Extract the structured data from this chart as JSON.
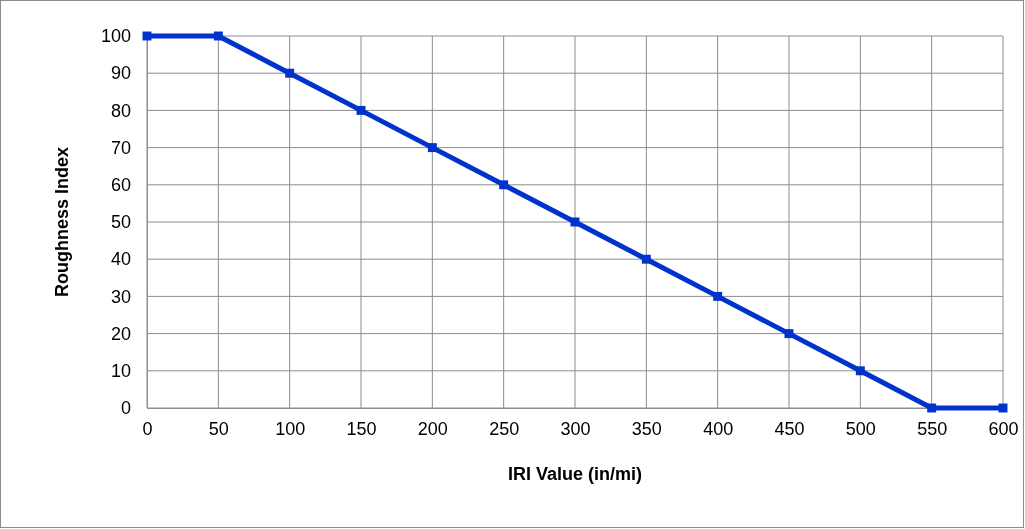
{
  "chart_data": {
    "type": "line",
    "xlabel": "IRI Value (in/mi)",
    "ylabel": "Roughness Index",
    "x": [
      0,
      50,
      100,
      150,
      200,
      250,
      300,
      350,
      400,
      450,
      500,
      550,
      600
    ],
    "series": [
      {
        "color": "#0033cc",
        "values": [
          100,
          100,
          90,
          80,
          70,
          60,
          50,
          40,
          30,
          20,
          10,
          0,
          0
        ]
      }
    ],
    "xlim": [
      0,
      600
    ],
    "xticks": [
      0,
      50,
      100,
      150,
      200,
      250,
      300,
      350,
      400,
      450,
      500,
      550,
      600
    ],
    "ylim": [
      0,
      100
    ],
    "yticks": [
      0,
      10,
      20,
      30,
      40,
      50,
      60,
      70,
      80,
      90,
      100
    ],
    "grid": true,
    "marker": "square",
    "line_style": "solid"
  }
}
